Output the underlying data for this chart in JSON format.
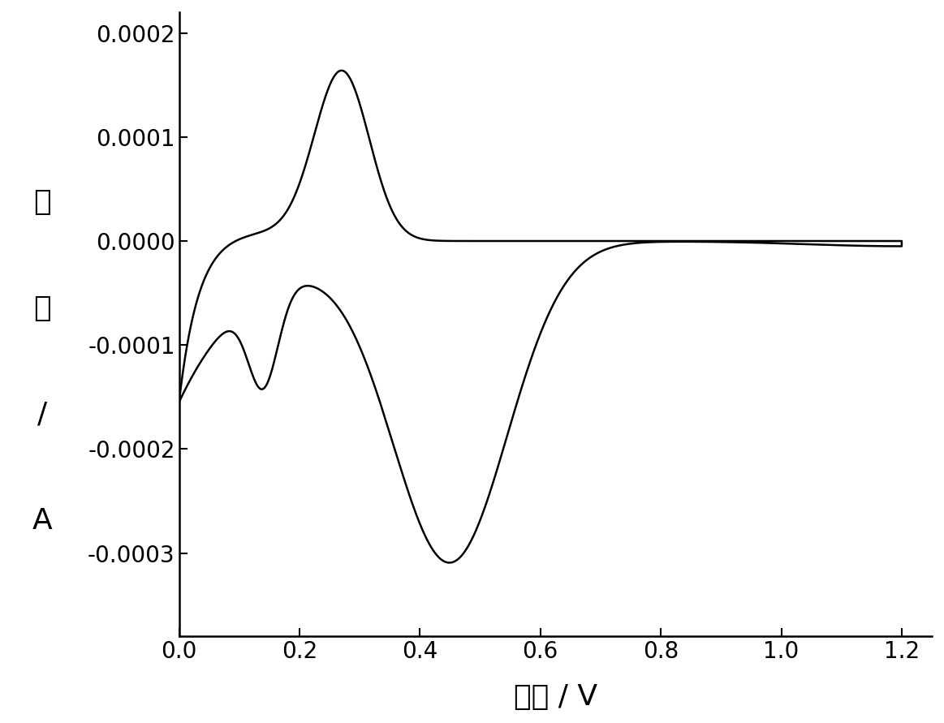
{
  "xlabel": "电压 / V",
  "ylabel_chars": [
    "电",
    "流",
    "/",
    "A"
  ],
  "xlim": [
    0.0,
    1.25
  ],
  "ylim": [
    -0.00038,
    0.00022
  ],
  "xticks": [
    0.0,
    0.2,
    0.4,
    0.6,
    0.8,
    1.0,
    1.2
  ],
  "yticks": [
    -0.0003,
    -0.0002,
    -0.0001,
    0.0,
    0.0001,
    0.0002
  ],
  "line_color": "#000000",
  "background_color": "#ffffff",
  "tick_label_fontsize": 20,
  "axis_label_fontsize": 26,
  "linewidth": 1.8
}
